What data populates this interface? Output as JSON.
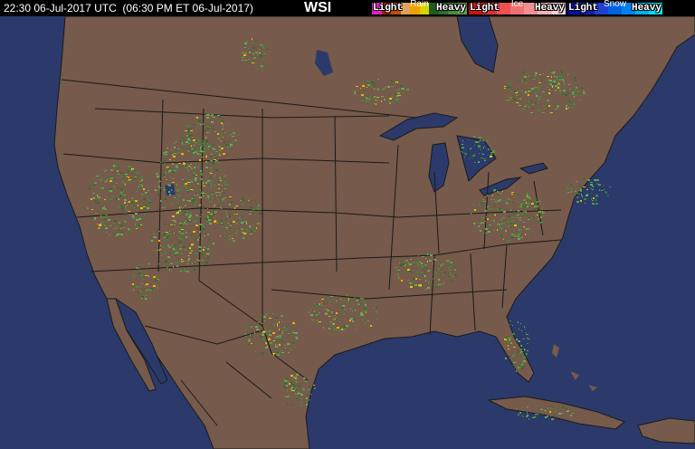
{
  "header": {
    "timestamp": "22:30 06-Jul-2017 UTC  (06:30 PM ET 06-Jul-2017)",
    "brand": "WSI"
  },
  "legend": {
    "rain": {
      "title": "Rain",
      "light": "Light",
      "heavy": "Heavy",
      "colors": [
        "#6a9a5a",
        "#4a8a3a",
        "#2e6e2e",
        "#1f5a1f",
        "#d8d000",
        "#f0a000",
        "#e0a060",
        "#c05000",
        "#a02000",
        "#e020c0"
      ]
    },
    "ice": {
      "title": "Ice",
      "light": "Light",
      "heavy": "Heavy",
      "colors": [
        "#f8d0d8",
        "#f4b0b8",
        "#f09090",
        "#f07070",
        "#ee5050",
        "#e03030",
        "#d01010"
      ]
    },
    "snow": {
      "title": "Snow",
      "light": "Light",
      "heavy": "Heavy",
      "colors": [
        "#00e0f0",
        "#00b0f0",
        "#0080f0",
        "#0060e0",
        "#2040d0",
        "#1020b0",
        "#0010a0"
      ]
    }
  },
  "map": {
    "ocean_color": "#2b3a6b",
    "land_color": "#765a4b",
    "border_color": "#1a1a1a",
    "lake_color": "#2b3a6b"
  }
}
